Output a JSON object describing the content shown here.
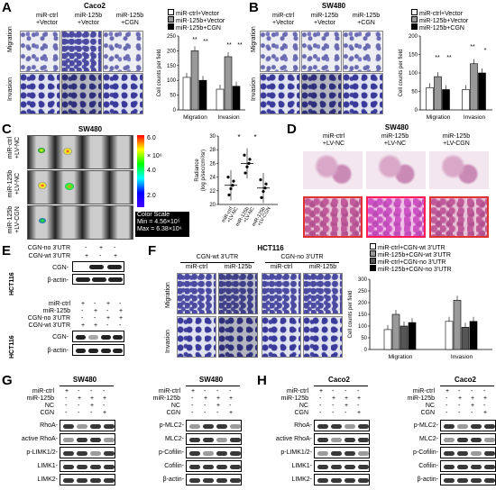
{
  "panels": {
    "A": "A",
    "B": "B",
    "C": "C",
    "D": "D",
    "E": "E",
    "F": "F",
    "G": "G",
    "H": "H"
  },
  "A": {
    "title": "Caco2",
    "cols": [
      "miR-ctrl\n+Vector",
      "miR-125b\n+Vector",
      "miR-125b\n+CGN"
    ],
    "rows": [
      "Migration",
      "Invasion"
    ],
    "chart_ylabel": "Cell counts per field",
    "ticks": [
      "0",
      "50",
      "100",
      "150",
      "200",
      "250"
    ],
    "groups": [
      "Migration",
      "Invasion"
    ],
    "legend": [
      "miR-ctrl+Vector",
      "miR-125b+Vector",
      "miR-125b+CGN"
    ],
    "sig": "**"
  },
  "B": {
    "title": "SW480",
    "cols": [
      "miR-ctrl\n+Vector",
      "miR-125b\n+Vector",
      "miR-125b\n+CGN"
    ],
    "rows": [
      "Migration",
      "Invasion"
    ],
    "chart_ylabel": "Cell counts per field",
    "ticks": [
      "0",
      "50",
      "100",
      "150",
      "200"
    ],
    "groups": [
      "Migration",
      "Invasion"
    ],
    "legend": [
      "miR-ctrl+Vector",
      "miR-125b+Vector",
      "miR-125b+CGN"
    ],
    "sig2": "**",
    "sig1": "*"
  },
  "C": {
    "title": "SW480",
    "rows": [
      "miR-ctrl\n+LV-NC",
      "miR-125b\n+LV-NC",
      "miR-125b\n+LV-CGN"
    ],
    "scale_top": "6.0",
    "scale_exp": "× 10⁶",
    "scale_mid": "4.0",
    "scale_low": "2.0",
    "color_scale": "Color Scale",
    "min": "Min = 4.56×10⁵",
    "max": "Max = 6.38×10⁶",
    "ylabel": "Radiance\n(log p/sec/cm²/sr)",
    "ticks": [
      "20",
      "22",
      "24",
      "26",
      "28",
      "30"
    ],
    "xlabels": [
      "miR-ctrl\n+LV-NC",
      "miR-125b\n+LV-NC",
      "miR-125b\n+LV-CGN"
    ],
    "sig": "*"
  },
  "D": {
    "title": "SW480",
    "cols": [
      "miR-ctrl\n+LV-NC",
      "miR-125b\n+LV-NC",
      "miR-125b\n+LV-CGN"
    ]
  },
  "E": {
    "rows1": [
      "CGN-no 3'UTR",
      "CGN-wt 3'UTR"
    ],
    "signs1": [
      [
        "-",
        "+",
        "-"
      ],
      [
        "+",
        "-",
        "+"
      ]
    ],
    "cell": "HCT116",
    "b1": [
      "CGN-",
      "β-actin-"
    ],
    "rows2": [
      "miR-ctrl",
      "miR-125b",
      "CGN-no 3'UTR",
      "CGN-wt 3'UTR"
    ],
    "signs2": [
      [
        "+",
        "-",
        "+",
        "-"
      ],
      [
        "-",
        "+",
        "-",
        "+"
      ],
      [
        "-",
        "-",
        "+",
        "+"
      ],
      [
        "+",
        "+",
        "-",
        "-"
      ]
    ],
    "b2": [
      "CGN-",
      "β-actin-"
    ]
  },
  "F": {
    "title": "HCT116",
    "groups": [
      "CGN-wt 3'UTR",
      "CGN-no 3'UTR"
    ],
    "cols": [
      "miR-ctrl",
      "miR-125b",
      "miR-ctrl",
      "miR-125b"
    ],
    "rows": [
      "Migration",
      "Invasion"
    ],
    "legend": [
      "miR-ctrl+CGN-wt 3'UTR",
      "miR-125b+CGN-wt 3'UTR",
      "miR-ctrl+CGN-no 3'UTR",
      "miR-125b+CGN-no 3'UTR"
    ],
    "chart_ylabel": "Cell counts per field",
    "ticks": [
      "0",
      "50",
      "100",
      "150",
      "200",
      "250",
      "300"
    ],
    "xgroups": [
      "Migration",
      "Invasion"
    ]
  },
  "G": {
    "left": {
      "title": "SW480",
      "rows": [
        "miR-ctrl",
        "miR-125b",
        "NC",
        "CGN"
      ],
      "signs": [
        [
          "+",
          "-",
          "-",
          "-"
        ],
        [
          "-",
          "+",
          "+",
          "+"
        ],
        [
          "-",
          "-",
          "+",
          "-"
        ],
        [
          "-",
          "-",
          "-",
          "+"
        ]
      ],
      "blots": [
        "RhoA-",
        "active RhoA-",
        "p-LIMK1/2-",
        "LIMK1-",
        "LIMK2-"
      ]
    },
    "right": {
      "title": "SW480",
      "rows": [
        "miR-ctrl",
        "miR-125b",
        "NC",
        "CGN"
      ],
      "signs": [
        [
          "+",
          "-",
          "-",
          "-"
        ],
        [
          "-",
          "+",
          "+",
          "+"
        ],
        [
          "-",
          "-",
          "+",
          "-"
        ],
        [
          "-",
          "-",
          "-",
          "+"
        ]
      ],
      "blots": [
        "p-MLC2-",
        "MLC2-",
        "p-Cofilin-",
        "Cofilin-",
        "β-actin-"
      ]
    }
  },
  "H": {
    "left": {
      "title": "Caco2",
      "rows": [
        "miR-ctrl",
        "miR-125b",
        "NC",
        "CGN"
      ],
      "signs": [
        [
          "+",
          "-",
          "-",
          "-"
        ],
        [
          "-",
          "+",
          "+",
          "+"
        ],
        [
          "-",
          "-",
          "+",
          "-"
        ],
        [
          "-",
          "-",
          "-",
          "+"
        ]
      ],
      "blots": [
        "RhoA-",
        "active RhoA-",
        "p-LIMK1/2-",
        "LIMK1-",
        "LIMK2-"
      ]
    },
    "right": {
      "title": "Caco2",
      "rows": [
        "miR-ctrl",
        "miR-125b",
        "NC",
        "CGN"
      ],
      "signs": [
        [
          "+",
          "-",
          "-",
          "-"
        ],
        [
          "-",
          "+",
          "+",
          "+"
        ],
        [
          "-",
          "-",
          "+",
          "-"
        ],
        [
          "-",
          "-",
          "-",
          "+"
        ]
      ],
      "blots": [
        "p-MLC2-",
        "MLC2-",
        "p-Cofilin-",
        "Cofilin-",
        "β-actin-"
      ]
    }
  },
  "chart_data": [
    {
      "type": "bar",
      "panel": "A",
      "categories": [
        "Migration",
        "Invasion"
      ],
      "ylabel": "Cell counts per field",
      "ylim": [
        0,
        250
      ],
      "series": [
        {
          "name": "miR-ctrl+Vector",
          "values": [
            110,
            70
          ]
        },
        {
          "name": "miR-125b+Vector",
          "values": [
            200,
            180
          ]
        },
        {
          "name": "miR-125b+CGN",
          "values": [
            100,
            80
          ]
        }
      ]
    },
    {
      "type": "bar",
      "panel": "B",
      "categories": [
        "Migration",
        "Invasion"
      ],
      "ylabel": "Cell counts per field",
      "ylim": [
        0,
        200
      ],
      "series": [
        {
          "name": "miR-ctrl+Vector",
          "values": [
            60,
            55
          ]
        },
        {
          "name": "miR-125b+Vector",
          "values": [
            90,
            125
          ]
        },
        {
          "name": "miR-125b+CGN",
          "values": [
            55,
            100
          ]
        }
      ]
    },
    {
      "type": "scatter",
      "panel": "C",
      "categories": [
        "miR-ctrl +LV-NC",
        "miR-125b +LV-NC",
        "miR-125b +LV-CGN"
      ],
      "ylabel": "Radiance (log p/sec/cm²/sr)",
      "ylim": [
        20,
        30
      ],
      "means": [
        22.8,
        26.0,
        22.4
      ]
    },
    {
      "type": "bar",
      "panel": "F",
      "categories": [
        "Migration",
        "Invasion"
      ],
      "ylabel": "Cell counts per field",
      "ylim": [
        0,
        300
      ],
      "series": [
        {
          "name": "miR-ctrl+CGN-wt 3'UTR",
          "values": [
            85,
            120
          ]
        },
        {
          "name": "miR-125b+CGN-wt 3'UTR",
          "values": [
            150,
            210
          ]
        },
        {
          "name": "miR-ctrl+CGN-no 3'UTR",
          "values": [
            100,
            95
          ]
        },
        {
          "name": "miR-125b+CGN-no 3'UTR",
          "values": [
            115,
            120
          ]
        }
      ]
    }
  ]
}
